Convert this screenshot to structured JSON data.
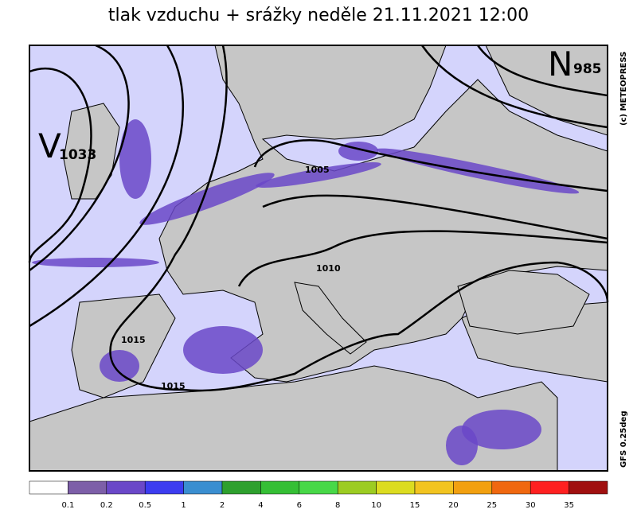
{
  "title": "tlak vzduchu + srážky  neděle 21.11.2021 12:00",
  "pressure_centers": [
    {
      "letter": "V",
      "value": "1033"
    },
    {
      "letter": "N",
      "value": "985"
    }
  ],
  "isobar_labels": [
    "1005",
    "1010",
    "1015",
    "1015"
  ],
  "credits": [
    "(c) METEOPRESS",
    "GFS 0.25deg"
  ],
  "legend": {
    "labels": [
      "0.1",
      "0.2",
      "0.5",
      "1",
      "2",
      "4",
      "6",
      "8",
      "10",
      "15",
      "20",
      "25",
      "30",
      "35"
    ],
    "colors": [
      "#ffffff",
      "#7d5fa8",
      "#6a48c8",
      "#3c3cf0",
      "#3a8ed0",
      "#2ea02e",
      "#35bf35",
      "#48d848",
      "#9ccc22",
      "#dcdc20",
      "#f2c420",
      "#f2a010",
      "#f06810",
      "#ff2020",
      "#a01010"
    ]
  }
}
